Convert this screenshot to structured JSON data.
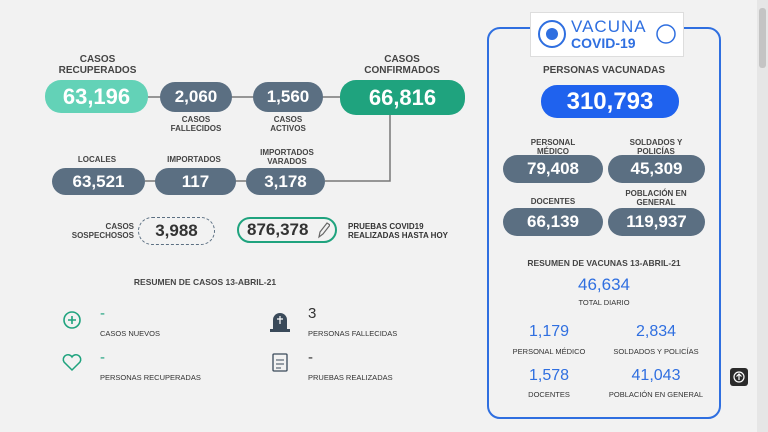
{
  "logo": {
    "line1": "VACUNA",
    "line2": "COVID-19"
  },
  "cases": {
    "recovered": {
      "label": "CASOS RECUPERADOS",
      "value": "63,196"
    },
    "deceased": {
      "label": "CASOS FALLECIDOS",
      "value": "2,060"
    },
    "active": {
      "label": "CASOS ACTIVOS",
      "value": "1,560"
    },
    "confirmed": {
      "label": "CASOS CONFIRMADOS",
      "value": "66,816"
    },
    "local": {
      "label": "LOCALES",
      "value": "63,521"
    },
    "imported": {
      "label": "IMPORTADOS",
      "value": "117"
    },
    "stranded": {
      "label": "IMPORTADOS VARADOS",
      "value": "3,178"
    },
    "suspected": {
      "label": "CASOS SOSPECHOSOS",
      "value": "3,988"
    },
    "tests": {
      "label": "PRUEBAS COVID19 REALIZADAS HASTA HOY",
      "value": "876,378"
    }
  },
  "summary": {
    "title": "RESUMEN DE CASOS 13-ABRIL-21",
    "items": [
      {
        "value": "-",
        "label": "CASOS NUEVOS"
      },
      {
        "value": "3",
        "label": "PERSONAS FALLECIDAS"
      },
      {
        "value": "-",
        "label": "PERSONAS RECUPERADAS"
      },
      {
        "value": "-",
        "label": "PRUEBAS REALIZADAS"
      }
    ]
  },
  "vaccines": {
    "title": "PERSONAS VACUNADAS",
    "total": "310,793",
    "groups": [
      {
        "label": "PERSONAL MÉDICO",
        "value": "79,408"
      },
      {
        "label": "SOLDADOS Y POLICÍAS",
        "value": "45,309"
      },
      {
        "label": "DOCENTES",
        "value": "66,139"
      },
      {
        "label": "POBLACIÓN EN GENERAL",
        "value": "119,937"
      }
    ],
    "summary_title": "RESUMEN DE VACUNAS 13-ABRIL-21",
    "daily": {
      "value": "46,634",
      "label": "TOTAL DIARIO"
    },
    "daily_groups": [
      {
        "value": "1,179",
        "label": "PERSONAL MÉDICO"
      },
      {
        "value": "2,834",
        "label": "SOLDADOS Y POLICÍAS"
      },
      {
        "value": "1,578",
        "label": "DOCENTES"
      },
      {
        "value": "41,043",
        "label": "POBLACIÓN EN GENERAL"
      }
    ]
  }
}
